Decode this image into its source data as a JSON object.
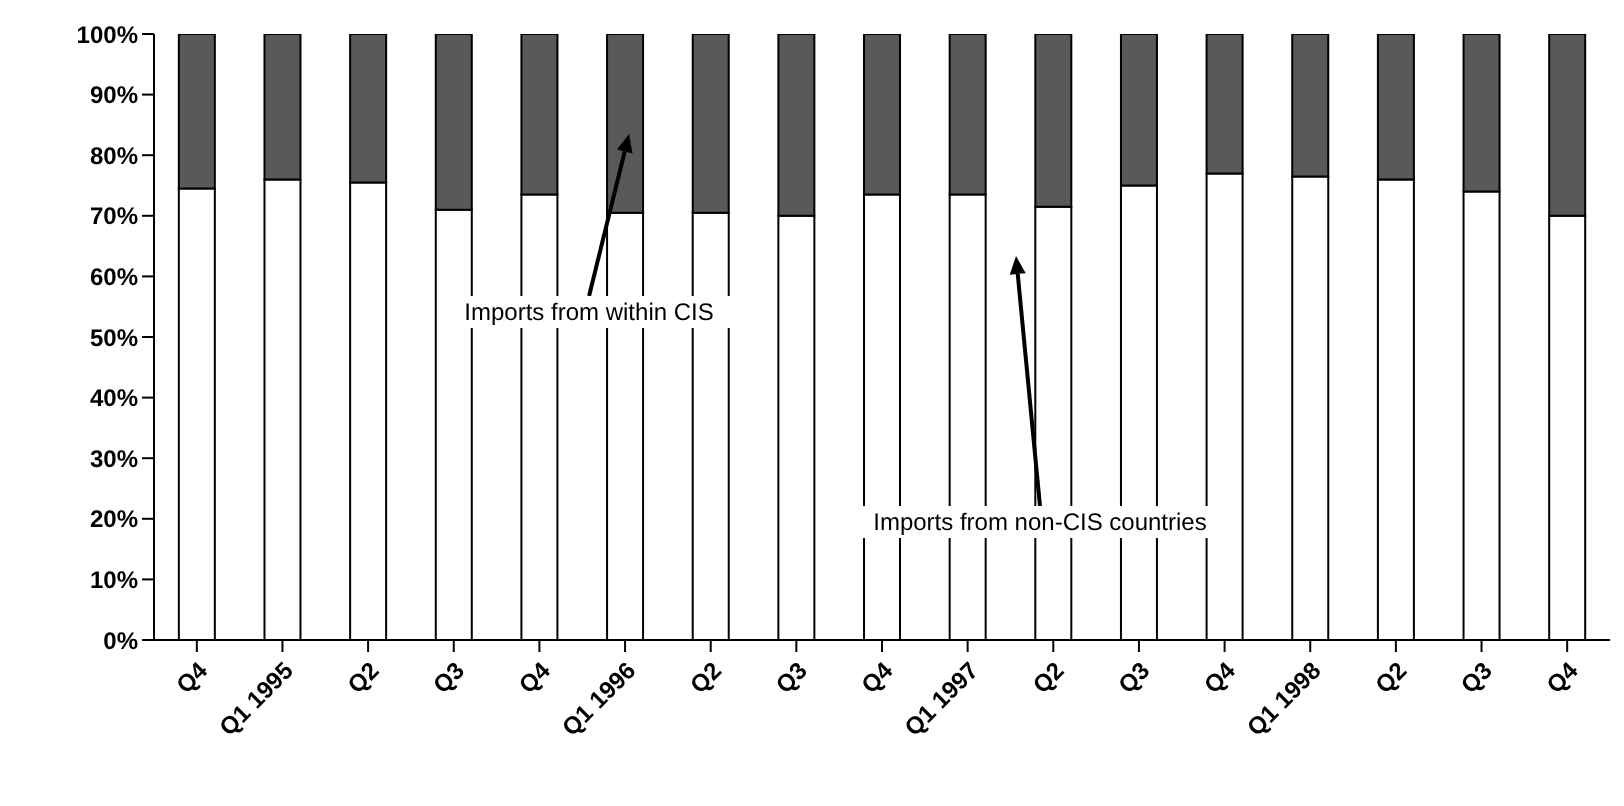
{
  "chart_data": {
    "type": "bar",
    "stacked": true,
    "categories": [
      "Q4",
      "Q1 1995",
      "Q2",
      "Q3",
      "Q4",
      "Q1 1996",
      "Q2",
      "Q3",
      "Q4",
      "Q1 1997",
      "Q2",
      "Q3",
      "Q4",
      "Q1 1998",
      "Q2",
      "Q3",
      "Q4"
    ],
    "series": [
      {
        "color": "#ffffff",
        "values": [
          74.5,
          76,
          75.5,
          71,
          73.5,
          70.5,
          70.5,
          70,
          73.5,
          73.5,
          71.5,
          75,
          77,
          76.5,
          76,
          74,
          70
        ]
      },
      {
        "color": "#595959",
        "values": [
          25.5,
          24,
          24.5,
          29,
          26.5,
          29.5,
          29.5,
          30,
          26.5,
          26.5,
          28.5,
          25,
          23,
          23.5,
          24,
          26,
          30
        ]
      }
    ],
    "ylim": [
      0,
      100
    ],
    "yticks": [
      {
        "value": 0,
        "label": "0%"
      },
      {
        "value": 10,
        "label": "10%"
      },
      {
        "value": 20,
        "label": "20%"
      },
      {
        "value": 30,
        "label": "30%"
      },
      {
        "value": 40,
        "label": "40%"
      },
      {
        "value": 50,
        "label": "50%"
      },
      {
        "value": 60,
        "label": "60%"
      },
      {
        "value": 70,
        "label": "70%"
      },
      {
        "value": 80,
        "label": "80%"
      },
      {
        "value": 90,
        "label": "90%"
      },
      {
        "value": 100,
        "label": "100%"
      }
    ],
    "annotations": [
      {
        "text": "Imports from within CIS",
        "x": "Q1 1996"
      },
      "Imports from non-CIS countries"
    ]
  }
}
